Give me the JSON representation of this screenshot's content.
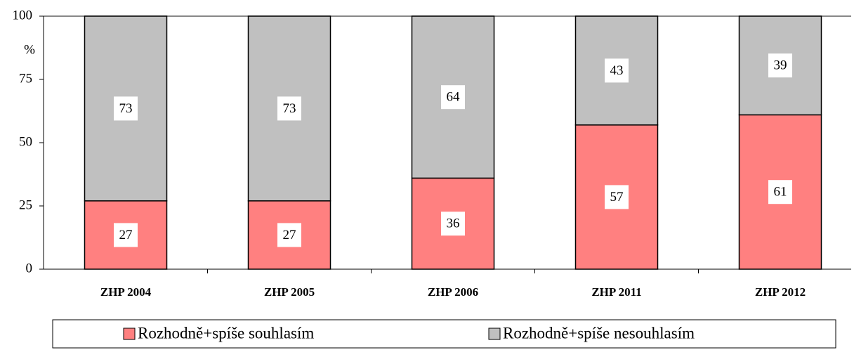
{
  "chart_data": {
    "type": "stacked_bar",
    "y_label": "%",
    "categories": [
      "ZHP 2004",
      "ZHP 2005",
      "ZHP 2006",
      "ZHP 2011",
      "ZHP 2012"
    ],
    "series": [
      {
        "name": "Rozhodně+spíše souhlasím",
        "color": "#ff8080",
        "values": [
          27,
          27,
          36,
          57,
          61
        ]
      },
      {
        "name": "Rozhodně+spíše nesouhlasím",
        "color": "#c0c0c0",
        "values": [
          73,
          73,
          64,
          43,
          39
        ]
      }
    ],
    "ylim": [
      0,
      100
    ],
    "yticks": [
      0,
      25,
      50,
      75,
      100
    ],
    "grid": false,
    "legend": "bottom"
  }
}
